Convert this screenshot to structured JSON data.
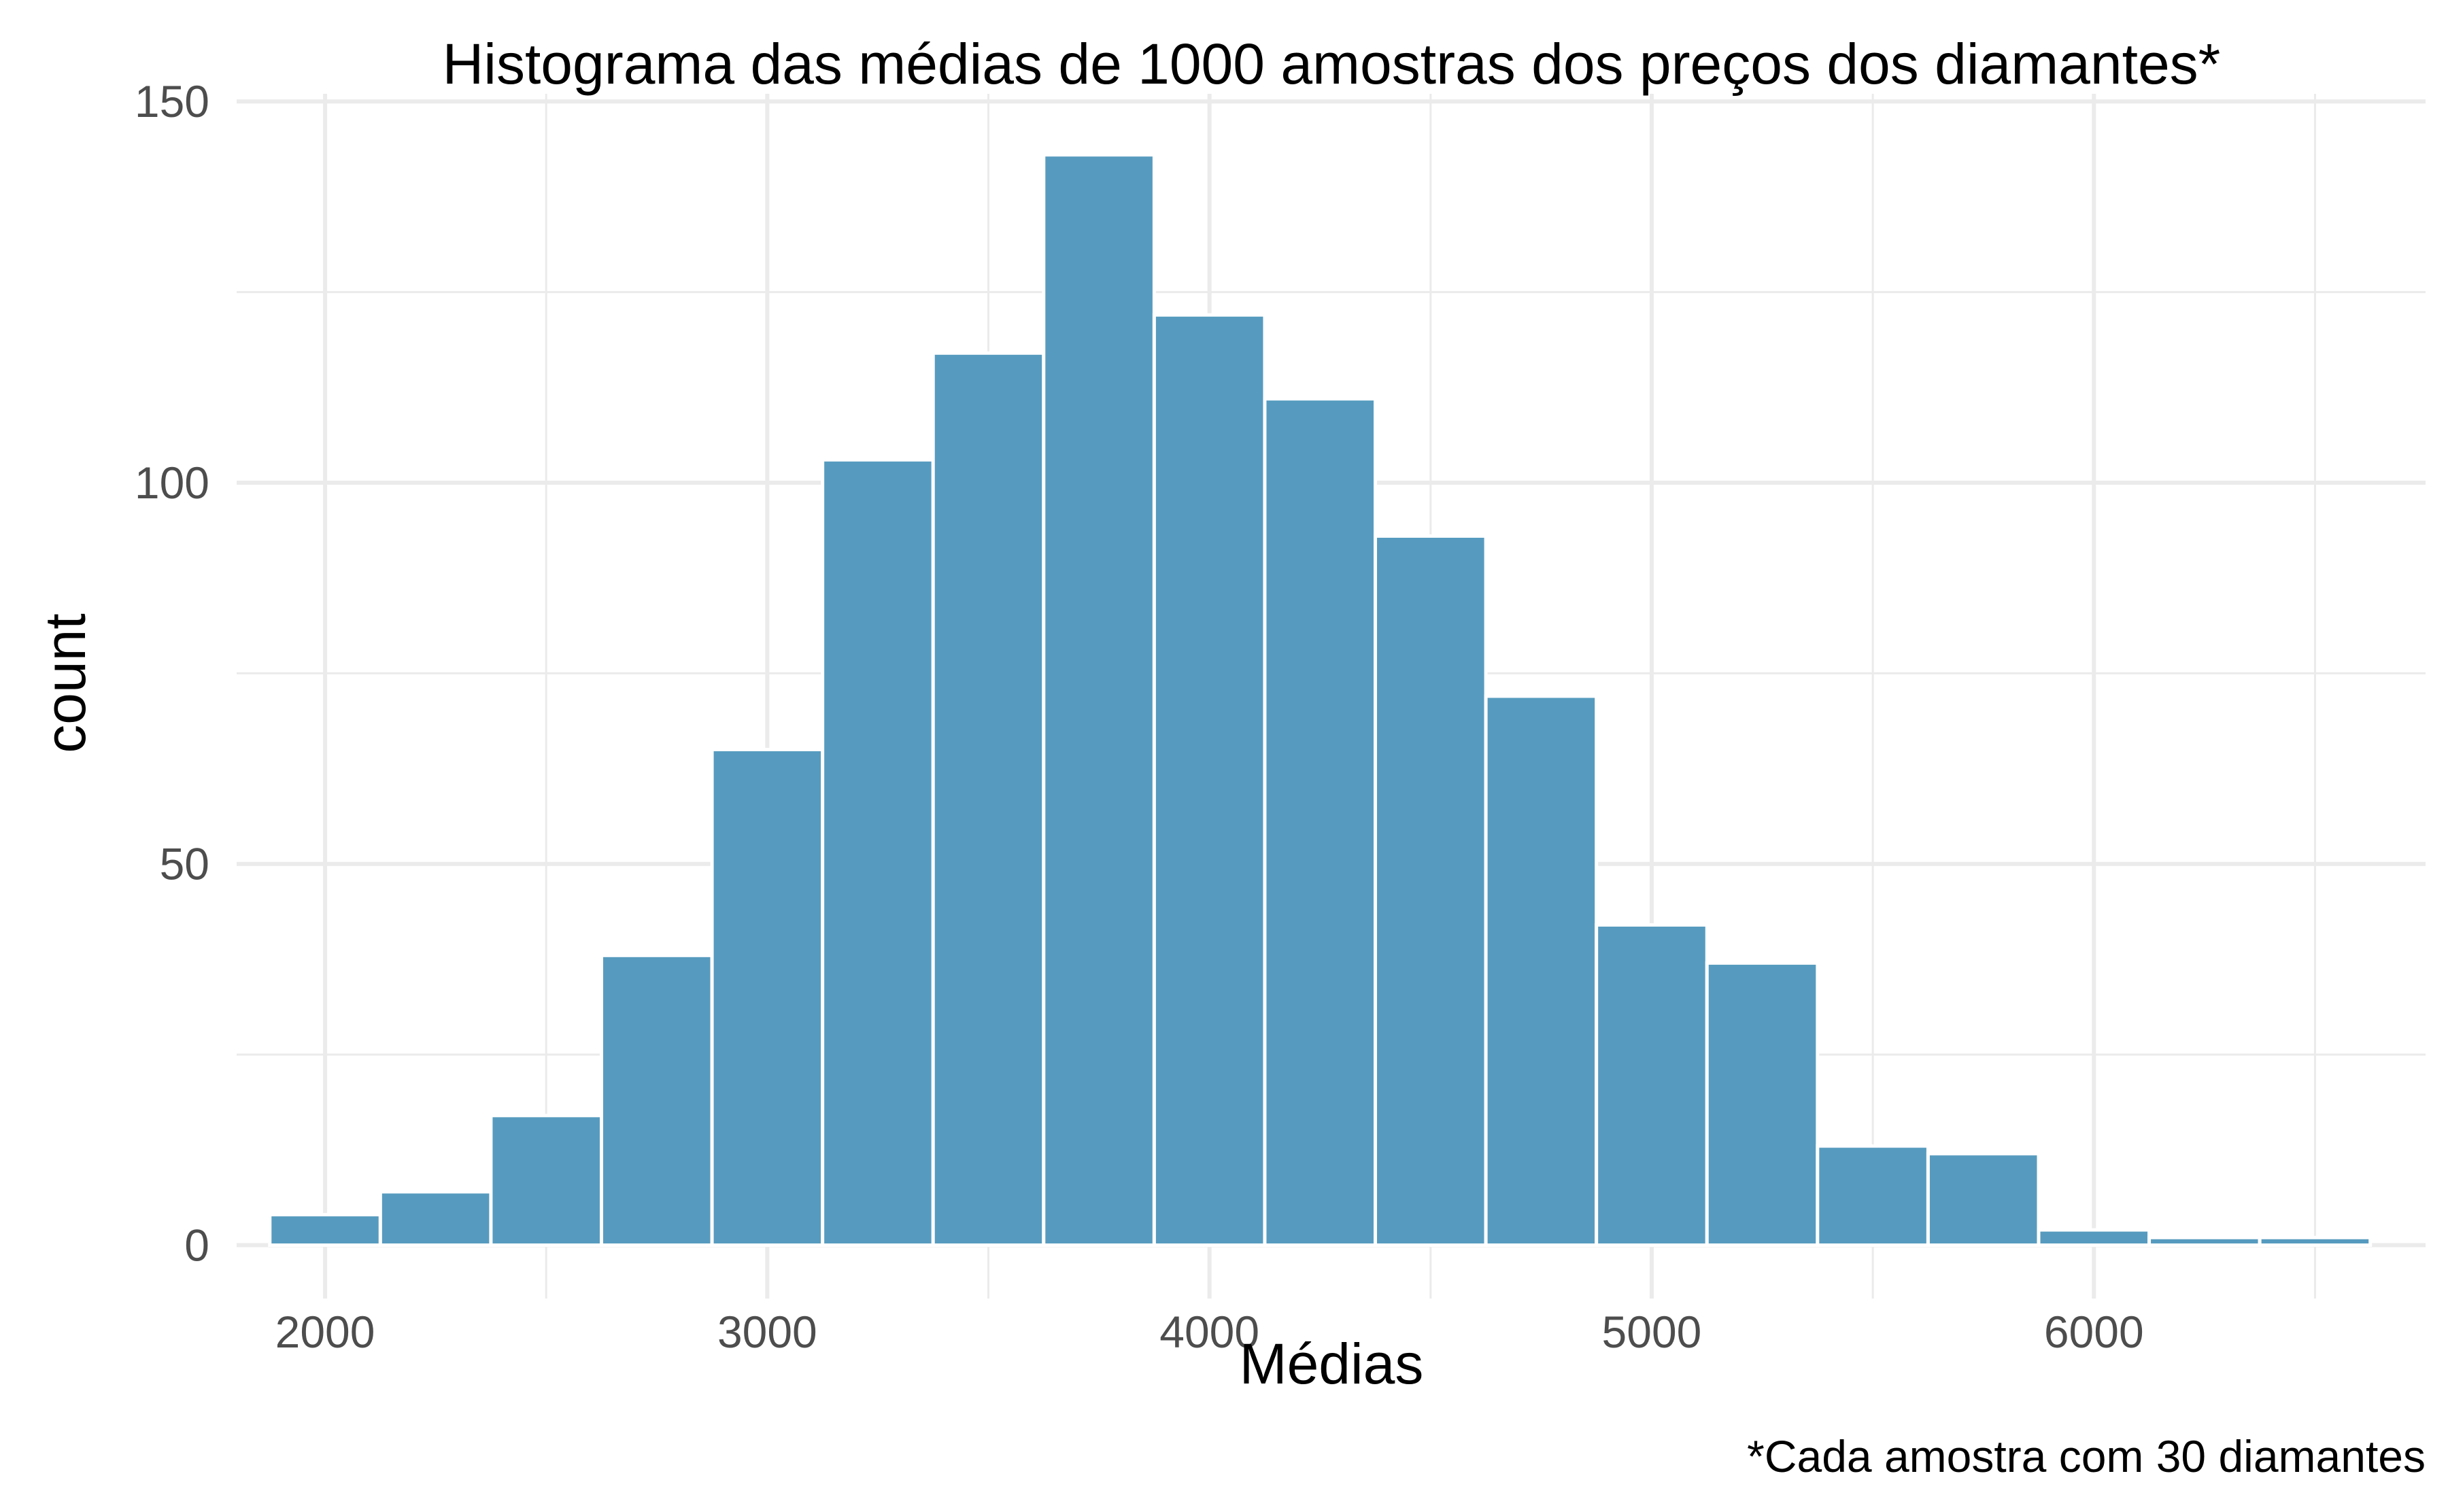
{
  "chart_data": {
    "type": "bar",
    "title": "Histograma das médias de 1000 amostras dos preços dos diamantes*",
    "xlabel": "Médias",
    "ylabel": "count",
    "caption": "*Cada amostra com 30 diamantes",
    "xlim": [
      1800,
      6750
    ],
    "ylim": [
      -7,
      151
    ],
    "x_ticks": [
      2000,
      3000,
      4000,
      5000,
      6000
    ],
    "y_ticks": [
      0,
      50,
      100,
      150
    ],
    "x_ticks_text": [
      "2000",
      "3000",
      "4000",
      "5000",
      "6000"
    ],
    "y_ticks_text": [
      "0",
      "50",
      "100",
      "150"
    ],
    "grid": true,
    "bar_color": "#569BBF",
    "bins": [
      {
        "x0": 1875,
        "x1": 2125,
        "count": 4
      },
      {
        "x0": 2125,
        "x1": 2375,
        "count": 7
      },
      {
        "x0": 2375,
        "x1": 2625,
        "count": 17
      },
      {
        "x0": 2625,
        "x1": 2875,
        "count": 38
      },
      {
        "x0": 2875,
        "x1": 3125,
        "count": 65
      },
      {
        "x0": 3125,
        "x1": 3375,
        "count": 103
      },
      {
        "x0": 3375,
        "x1": 3625,
        "count": 117
      },
      {
        "x0": 3625,
        "x1": 3875,
        "count": 143
      },
      {
        "x0": 3875,
        "x1": 4125,
        "count": 122
      },
      {
        "x0": 4125,
        "x1": 4375,
        "count": 111
      },
      {
        "x0": 4375,
        "x1": 4625,
        "count": 93
      },
      {
        "x0": 4625,
        "x1": 4875,
        "count": 72
      },
      {
        "x0": 4875,
        "x1": 5125,
        "count": 42
      },
      {
        "x0": 5125,
        "x1": 5375,
        "count": 37
      },
      {
        "x0": 5375,
        "x1": 5625,
        "count": 13
      },
      {
        "x0": 5625,
        "x1": 5875,
        "count": 12
      },
      {
        "x0": 5875,
        "x1": 6125,
        "count": 2
      },
      {
        "x0": 6125,
        "x1": 6375,
        "count": 1
      },
      {
        "x0": 6375,
        "x1": 6625,
        "count": 1
      }
    ]
  }
}
